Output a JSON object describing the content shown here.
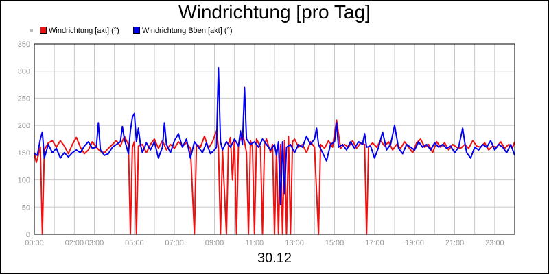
{
  "chart_data": {
    "type": "line",
    "title": "Windrichtung [pro Tag]",
    "xlabel": "30.12",
    "ylabel": "",
    "ylim": [
      0,
      350
    ],
    "xlim": [
      0,
      24
    ],
    "yticks": [
      0,
      50,
      100,
      150,
      200,
      250,
      300,
      350
    ],
    "xticks": [
      {
        "v": 0,
        "label": "00:00"
      },
      {
        "v": 2,
        "label": "02:00"
      },
      {
        "v": 3,
        "label": "03:00"
      },
      {
        "v": 5,
        "label": "05:00"
      },
      {
        "v": 7,
        "label": "07:00"
      },
      {
        "v": 9,
        "label": "09:00"
      },
      {
        "v": 11,
        "label": "11:00"
      },
      {
        "v": 13,
        "label": "13:00"
      },
      {
        "v": 15,
        "label": "15:00"
      },
      {
        "v": 17,
        "label": "17:00"
      },
      {
        "v": 19,
        "label": "19:00"
      },
      {
        "v": 21,
        "label": "21:00"
      },
      {
        "v": 23,
        "label": "23:00"
      }
    ],
    "grid": true,
    "legend_position": "top-left",
    "series": [
      {
        "name": "Windrichtung [akt] (°)",
        "color": "#ee1111",
        "points": [
          [
            0.0,
            150
          ],
          [
            0.1,
            132
          ],
          [
            0.2,
            145
          ],
          [
            0.3,
            160
          ],
          [
            0.4,
            0
          ],
          [
            0.5,
            155
          ],
          [
            0.7,
            168
          ],
          [
            0.9,
            172
          ],
          [
            1.1,
            160
          ],
          [
            1.3,
            172
          ],
          [
            1.5,
            162
          ],
          [
            1.7,
            148
          ],
          [
            1.9,
            165
          ],
          [
            2.1,
            178
          ],
          [
            2.3,
            160
          ],
          [
            2.5,
            148
          ],
          [
            2.7,
            155
          ],
          [
            2.9,
            170
          ],
          [
            3.1,
            160
          ],
          [
            3.3,
            152
          ],
          [
            3.5,
            150
          ],
          [
            3.7,
            158
          ],
          [
            3.9,
            165
          ],
          [
            4.1,
            172
          ],
          [
            4.3,
            162
          ],
          [
            4.5,
            180
          ],
          [
            4.7,
            165
          ],
          [
            4.8,
            0
          ],
          [
            4.9,
            160
          ],
          [
            5.0,
            170
          ],
          [
            5.1,
            0
          ],
          [
            5.2,
            162
          ],
          [
            5.4,
            165
          ],
          [
            5.6,
            150
          ],
          [
            5.8,
            165
          ],
          [
            6.0,
            175
          ],
          [
            6.2,
            158
          ],
          [
            6.4,
            172
          ],
          [
            6.6,
            155
          ],
          [
            6.8,
            165
          ],
          [
            7.0,
            158
          ],
          [
            7.2,
            170
          ],
          [
            7.4,
            162
          ],
          [
            7.6,
            168
          ],
          [
            7.8,
            158
          ],
          [
            8.0,
            0
          ],
          [
            8.1,
            165
          ],
          [
            8.3,
            160
          ],
          [
            8.5,
            180
          ],
          [
            8.7,
            158
          ],
          [
            8.9,
            170
          ],
          [
            9.1,
            190
          ],
          [
            9.2,
            160
          ],
          [
            9.3,
            0
          ],
          [
            9.4,
            155
          ],
          [
            9.6,
            0
          ],
          [
            9.7,
            165
          ],
          [
            9.8,
            178
          ],
          [
            9.9,
            100
          ],
          [
            10.0,
            175
          ],
          [
            10.1,
            0
          ],
          [
            10.2,
            165
          ],
          [
            10.4,
            185
          ],
          [
            10.5,
            170
          ],
          [
            10.6,
            150
          ],
          [
            10.7,
            0
          ],
          [
            10.8,
            172
          ],
          [
            10.9,
            160
          ],
          [
            11.0,
            0
          ],
          [
            11.1,
            175
          ],
          [
            11.3,
            160
          ],
          [
            11.4,
            0
          ],
          [
            11.5,
            165
          ],
          [
            11.6,
            175
          ],
          [
            11.8,
            150
          ],
          [
            11.9,
            165
          ],
          [
            12.0,
            0
          ],
          [
            12.1,
            155
          ],
          [
            12.2,
            0
          ],
          [
            12.3,
            165
          ],
          [
            12.4,
            0
          ],
          [
            12.5,
            172
          ],
          [
            12.6,
            0
          ],
          [
            12.7,
            180
          ],
          [
            12.8,
            0
          ],
          [
            12.9,
            170
          ],
          [
            13.0,
            175
          ],
          [
            13.2,
            160
          ],
          [
            13.4,
            165
          ],
          [
            13.6,
            150
          ],
          [
            13.8,
            170
          ],
          [
            14.0,
            160
          ],
          [
            14.2,
            0
          ],
          [
            14.3,
            165
          ],
          [
            14.5,
            158
          ],
          [
            14.7,
            172
          ],
          [
            14.9,
            160
          ],
          [
            15.1,
            210
          ],
          [
            15.3,
            158
          ],
          [
            15.5,
            165
          ],
          [
            15.7,
            160
          ],
          [
            15.9,
            172
          ],
          [
            16.1,
            158
          ],
          [
            16.3,
            168
          ],
          [
            16.5,
            165
          ],
          [
            16.6,
            0
          ],
          [
            16.7,
            160
          ],
          [
            16.9,
            168
          ],
          [
            17.1,
            160
          ],
          [
            17.3,
            172
          ],
          [
            17.5,
            162
          ],
          [
            17.7,
            170
          ],
          [
            17.9,
            155
          ],
          [
            18.1,
            165
          ],
          [
            18.3,
            158
          ],
          [
            18.5,
            170
          ],
          [
            18.7,
            160
          ],
          [
            18.9,
            150
          ],
          [
            19.1,
            168
          ],
          [
            19.3,
            175
          ],
          [
            19.5,
            160
          ],
          [
            19.7,
            165
          ],
          [
            19.9,
            150
          ],
          [
            20.1,
            170
          ],
          [
            20.3,
            160
          ],
          [
            20.5,
            168
          ],
          [
            20.7,
            155
          ],
          [
            20.9,
            165
          ],
          [
            21.1,
            160
          ],
          [
            21.3,
            158
          ],
          [
            21.5,
            165
          ],
          [
            21.7,
            158
          ],
          [
            21.9,
            172
          ],
          [
            22.1,
            162
          ],
          [
            22.3,
            160
          ],
          [
            22.5,
            168
          ],
          [
            22.7,
            155
          ],
          [
            22.9,
            162
          ],
          [
            23.1,
            160
          ],
          [
            23.3,
            170
          ],
          [
            23.5,
            158
          ],
          [
            23.7,
            165
          ],
          [
            23.9,
            160
          ],
          [
            24.0,
            170
          ]
        ]
      },
      {
        "name": "Windrichtung Böen [akt] (°)",
        "color": "#0000ee",
        "points": [
          [
            0.0,
            148
          ],
          [
            0.15,
            145
          ],
          [
            0.3,
            175
          ],
          [
            0.4,
            188
          ],
          [
            0.5,
            140
          ],
          [
            0.7,
            165
          ],
          [
            0.9,
            150
          ],
          [
            1.1,
            158
          ],
          [
            1.3,
            140
          ],
          [
            1.5,
            150
          ],
          [
            1.7,
            142
          ],
          [
            1.9,
            150
          ],
          [
            2.1,
            155
          ],
          [
            2.3,
            150
          ],
          [
            2.5,
            162
          ],
          [
            2.7,
            170
          ],
          [
            2.9,
            158
          ],
          [
            3.1,
            160
          ],
          [
            3.2,
            205
          ],
          [
            3.3,
            155
          ],
          [
            3.5,
            145
          ],
          [
            3.7,
            148
          ],
          [
            3.9,
            160
          ],
          [
            4.1,
            165
          ],
          [
            4.3,
            170
          ],
          [
            4.4,
            198
          ],
          [
            4.5,
            175
          ],
          [
            4.7,
            148
          ],
          [
            4.8,
            190
          ],
          [
            4.9,
            215
          ],
          [
            5.0,
            222
          ],
          [
            5.1,
            170
          ],
          [
            5.2,
            195
          ],
          [
            5.3,
            165
          ],
          [
            5.4,
            150
          ],
          [
            5.6,
            168
          ],
          [
            5.8,
            155
          ],
          [
            6.0,
            170
          ],
          [
            6.2,
            140
          ],
          [
            6.4,
            160
          ],
          [
            6.5,
            205
          ],
          [
            6.6,
            165
          ],
          [
            6.8,
            150
          ],
          [
            7.0,
            172
          ],
          [
            7.2,
            185
          ],
          [
            7.4,
            160
          ],
          [
            7.6,
            175
          ],
          [
            7.8,
            140
          ],
          [
            8.0,
            170
          ],
          [
            8.2,
            160
          ],
          [
            8.4,
            150
          ],
          [
            8.6,
            168
          ],
          [
            8.8,
            148
          ],
          [
            9.0,
            155
          ],
          [
            9.1,
            160
          ],
          [
            9.2,
            306
          ],
          [
            9.3,
            170
          ],
          [
            9.4,
            155
          ],
          [
            9.6,
            170
          ],
          [
            9.8,
            160
          ],
          [
            10.0,
            175
          ],
          [
            10.2,
            162
          ],
          [
            10.3,
            190
          ],
          [
            10.4,
            165
          ],
          [
            10.5,
            270
          ],
          [
            10.6,
            175
          ],
          [
            10.8,
            165
          ],
          [
            11.0,
            170
          ],
          [
            11.2,
            160
          ],
          [
            11.4,
            175
          ],
          [
            11.6,
            165
          ],
          [
            11.8,
            155
          ],
          [
            12.0,
            165
          ],
          [
            12.1,
            145
          ],
          [
            12.2,
            170
          ],
          [
            12.3,
            55
          ],
          [
            12.4,
            170
          ],
          [
            12.5,
            75
          ],
          [
            12.6,
            160
          ],
          [
            12.8,
            165
          ],
          [
            13.0,
            150
          ],
          [
            13.2,
            165
          ],
          [
            13.4,
            160
          ],
          [
            13.6,
            180
          ],
          [
            13.8,
            165
          ],
          [
            14.0,
            175
          ],
          [
            14.1,
            195
          ],
          [
            14.2,
            165
          ],
          [
            14.4,
            150
          ],
          [
            14.6,
            135
          ],
          [
            14.8,
            165
          ],
          [
            15.0,
            170
          ],
          [
            15.1,
            205
          ],
          [
            15.2,
            160
          ],
          [
            15.4,
            165
          ],
          [
            15.6,
            155
          ],
          [
            15.8,
            170
          ],
          [
            16.0,
            158
          ],
          [
            16.2,
            170
          ],
          [
            16.4,
            165
          ],
          [
            16.5,
            185
          ],
          [
            16.6,
            160
          ],
          [
            16.8,
            162
          ],
          [
            17.0,
            140
          ],
          [
            17.2,
            160
          ],
          [
            17.4,
            188
          ],
          [
            17.6,
            155
          ],
          [
            17.8,
            165
          ],
          [
            18.0,
            200
          ],
          [
            18.2,
            158
          ],
          [
            18.4,
            148
          ],
          [
            18.6,
            165
          ],
          [
            18.8,
            160
          ],
          [
            19.0,
            155
          ],
          [
            19.2,
            170
          ],
          [
            19.4,
            160
          ],
          [
            19.6,
            165
          ],
          [
            19.8,
            155
          ],
          [
            20.0,
            168
          ],
          [
            20.2,
            160
          ],
          [
            20.4,
            165
          ],
          [
            20.6,
            158
          ],
          [
            20.8,
            162
          ],
          [
            21.0,
            150
          ],
          [
            21.2,
            160
          ],
          [
            21.4,
            195
          ],
          [
            21.5,
            170
          ],
          [
            21.6,
            150
          ],
          [
            21.8,
            140
          ],
          [
            22.0,
            160
          ],
          [
            22.2,
            155
          ],
          [
            22.4,
            165
          ],
          [
            22.6,
            160
          ],
          [
            22.8,
            172
          ],
          [
            23.0,
            155
          ],
          [
            23.2,
            165
          ],
          [
            23.4,
            160
          ],
          [
            23.6,
            150
          ],
          [
            23.8,
            165
          ],
          [
            24.0,
            145
          ]
        ]
      }
    ]
  }
}
